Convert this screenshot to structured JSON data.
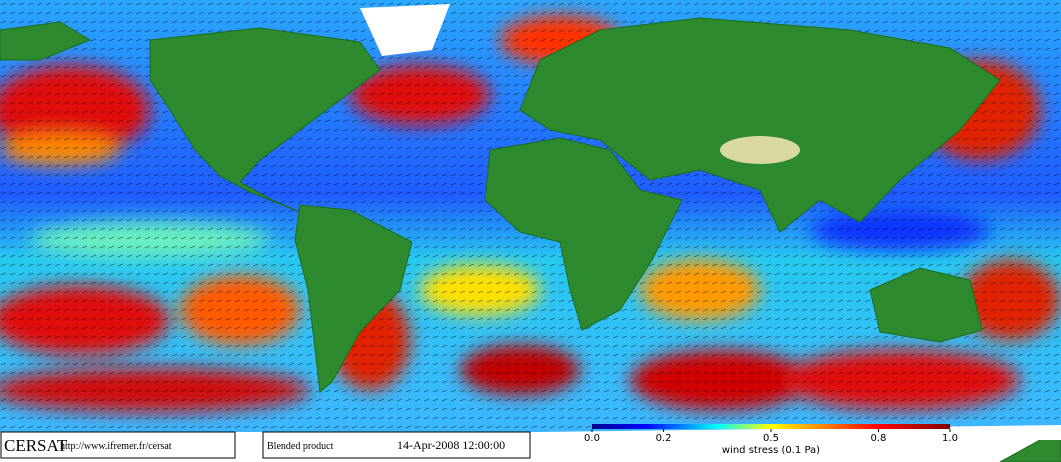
{
  "logo": {
    "text": "CERSAT",
    "url": "http://www.ifremer.fr/cersat"
  },
  "product": "Blended product",
  "timestamp": "14-Apr-2008 12:00:00",
  "colorbar": {
    "label": "wind stress (0.1 Pa)",
    "range": [
      0,
      1
    ],
    "ticks": [
      {
        "value": 0,
        "label": "0.0"
      },
      0.2,
      0.5,
      0.8,
      {
        "value": 1,
        "label": "1.0"
      }
    ]
  }
}
